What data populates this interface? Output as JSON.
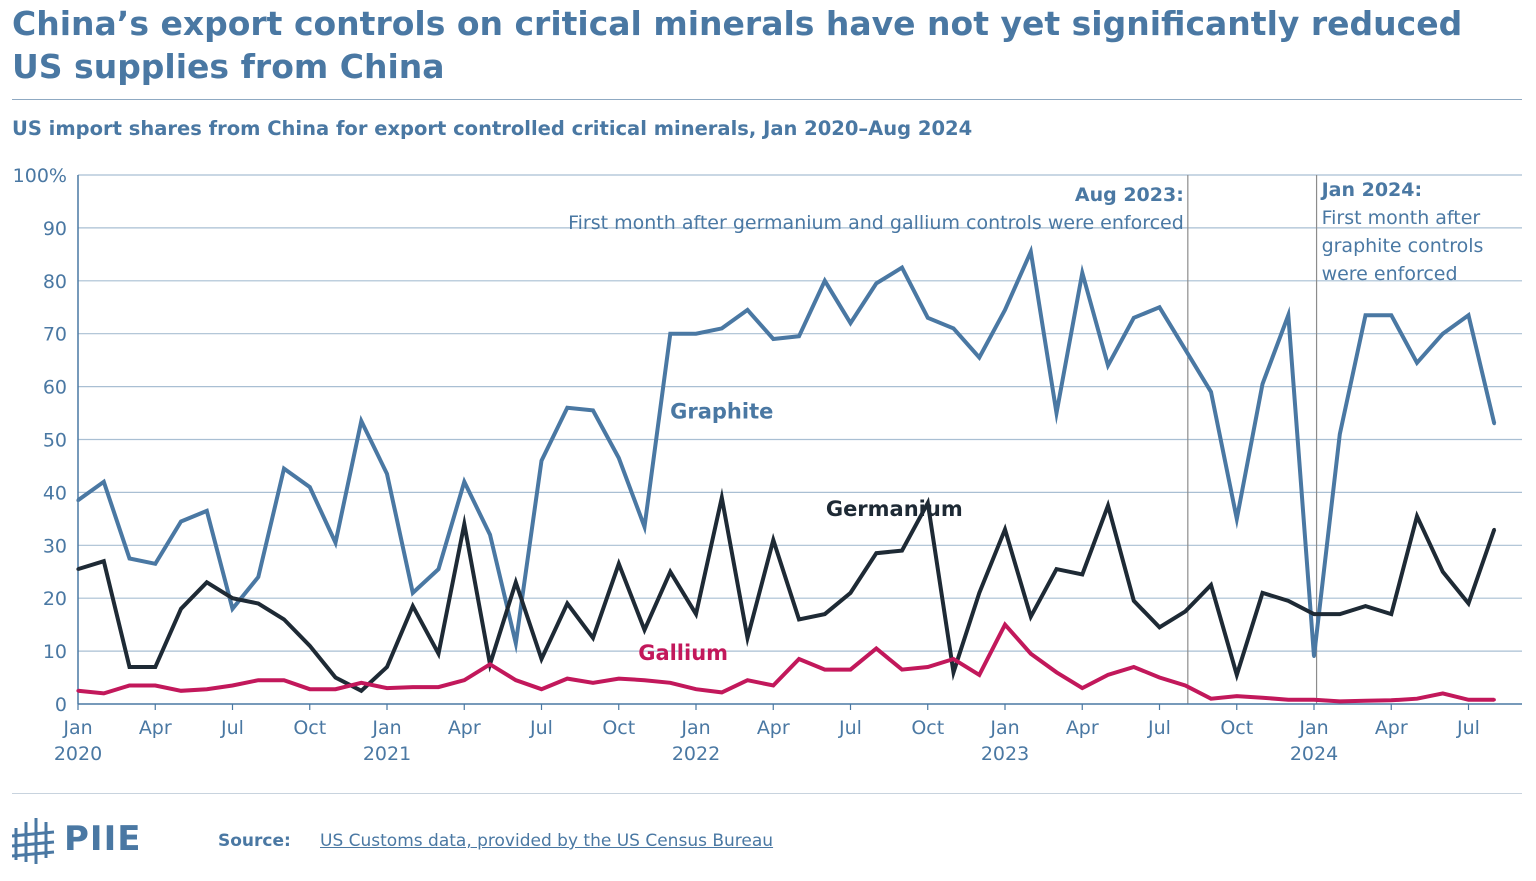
{
  "header": {
    "title": "China’s export controls on critical minerals have not yet significantly reduced US supplies from China",
    "subtitle": "US import shares from China for export controlled critical minerals, Jan 2020–Aug 2024"
  },
  "chart_data": {
    "type": "line",
    "title": "US import shares from China for export controlled critical minerals, Jan 2020–Aug 2024",
    "xlabel": "",
    "ylabel": "",
    "ylim": [
      0,
      100
    ],
    "y_ticks": [
      "100%",
      "90",
      "80",
      "70",
      "60",
      "50",
      "40",
      "30",
      "20",
      "10",
      "0"
    ],
    "y_tick_values": [
      100,
      90,
      80,
      70,
      60,
      50,
      40,
      30,
      20,
      10,
      0
    ],
    "x_tick_labels": [
      {
        "index": 0,
        "month": "Jan",
        "year": "2020"
      },
      {
        "index": 3,
        "month": "Apr",
        "year": ""
      },
      {
        "index": 6,
        "month": "Jul",
        "year": ""
      },
      {
        "index": 9,
        "month": "Oct",
        "year": ""
      },
      {
        "index": 12,
        "month": "Jan",
        "year": "2021"
      },
      {
        "index": 15,
        "month": "Apr",
        "year": ""
      },
      {
        "index": 18,
        "month": "Jul",
        "year": ""
      },
      {
        "index": 21,
        "month": "Oct",
        "year": ""
      },
      {
        "index": 24,
        "month": "Jan",
        "year": "2022"
      },
      {
        "index": 27,
        "month": "Apr",
        "year": ""
      },
      {
        "index": 30,
        "month": "Jul",
        "year": ""
      },
      {
        "index": 33,
        "month": "Oct",
        "year": ""
      },
      {
        "index": 36,
        "month": "Jan",
        "year": "2023"
      },
      {
        "index": 39,
        "month": "Apr",
        "year": ""
      },
      {
        "index": 42,
        "month": "Jul",
        "year": ""
      },
      {
        "index": 45,
        "month": "Oct",
        "year": ""
      },
      {
        "index": 48,
        "month": "Jan",
        "year": "2024"
      },
      {
        "index": 51,
        "month": "Apr",
        "year": ""
      },
      {
        "index": 54,
        "month": "Jul",
        "year": ""
      }
    ],
    "grid": true,
    "series": [
      {
        "name": "Graphite",
        "color": "#4a78a3",
        "label_at": {
          "index": 25,
          "value": 54
        },
        "values": [
          38.5,
          42,
          27.5,
          26.5,
          34.5,
          36.5,
          18,
          24,
          44.5,
          41,
          30.5,
          53.5,
          43.5,
          21,
          25.5,
          42,
          32,
          11.5,
          46,
          56,
          55.5,
          46.5,
          33.5,
          70,
          70,
          71,
          74.5,
          69,
          69.5,
          80,
          72,
          79.5,
          82.5,
          73,
          71,
          65.5,
          74.5,
          85.5,
          55,
          81.5,
          64,
          73,
          75,
          67,
          59,
          35,
          60.5,
          73.5,
          9,
          51,
          73.5,
          73.5,
          64.5,
          70,
          73.5,
          53
        ]
      },
      {
        "name": "Germanium",
        "color": "#1e2a35",
        "label_at": {
          "index": 31.7,
          "value": 35.5
        },
        "values": [
          25.5,
          27,
          7,
          7,
          18,
          23,
          20,
          19,
          16,
          11,
          5,
          2.5,
          7,
          18.5,
          9.5,
          34,
          7.5,
          23,
          8.5,
          19,
          12.5,
          26.5,
          14,
          25,
          17,
          39,
          12.5,
          31,
          16,
          17,
          21,
          28.5,
          29,
          38,
          6,
          21,
          33,
          16.5,
          25.5,
          24.5,
          37.5,
          19.5,
          14.5,
          17.5,
          22.5,
          5.5,
          21,
          19.5,
          17,
          17,
          18.5,
          17,
          35.5,
          25,
          19,
          33
        ]
      },
      {
        "name": "Gallium",
        "color": "#c2185b",
        "label_at": {
          "index": 23.5,
          "value": 8.3
        },
        "values": [
          2.5,
          2,
          3.5,
          3.5,
          2.5,
          2.8,
          3.5,
          4.5,
          4.5,
          2.8,
          2.8,
          4,
          3,
          3.2,
          3.2,
          4.5,
          7.5,
          4.5,
          2.8,
          4.8,
          4,
          4.8,
          4.5,
          4,
          2.8,
          2.2,
          4.5,
          3.5,
          8.5,
          6.5,
          6.5,
          10.5,
          6.5,
          7,
          8.5,
          5.5,
          15,
          9.5,
          6,
          3,
          5.5,
          7,
          5,
          3.5,
          1,
          1.5,
          1.2,
          0.8,
          0.8,
          0.5,
          0.6,
          0.7,
          1,
          2,
          0.8,
          0.8
        ]
      }
    ],
    "annotations": [
      {
        "index": 43.1,
        "title": "Aug 2023:",
        "lines": [
          "First month after germanium and gallium controls were enforced"
        ]
      },
      {
        "index": 48.1,
        "title": "Jan 2024:",
        "lines": [
          "First month after",
          "graphite controls",
          "were enforced"
        ]
      }
    ]
  },
  "footer": {
    "logo_text": "PIIE",
    "source_label": "Source:",
    "source_text": "US Customs data, provided by the US Census Bureau"
  }
}
